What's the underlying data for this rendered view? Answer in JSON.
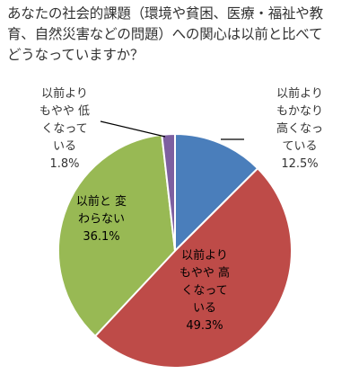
{
  "chart_data": {
    "type": "pie",
    "title_lines": [
      "あなたの社会的課題（環境や貧困、医療・福祉や教",
      "育、自然災害などの問題）への関心は以前と比べて",
      "どうなっていますか？"
    ],
    "start_angle_deg": 0,
    "direction": "clockwise",
    "slices": [
      {
        "label_lines": [
          "以前より",
          "もかなり",
          "高くなっ",
          "ている"
        ],
        "value": 12.5,
        "value_label": "12.5%",
        "color": "#4a7ebb",
        "label_color": "#ffffff",
        "label_position": "outside"
      },
      {
        "label_lines": [
          "以前より",
          "もやや 高",
          "くなって",
          "いる"
        ],
        "value": 49.3,
        "value_label": "49.3%",
        "color": "#be4b48",
        "label_color": "#ffffff",
        "label_position": "inside"
      },
      {
        "label_lines": [
          "以前と 変",
          "わらない"
        ],
        "value": 36.1,
        "value_label": "36.1%",
        "color": "#98b954",
        "label_color": "#ffffff",
        "label_position": "inside"
      },
      {
        "label_lines": [
          "以前より",
          "もやや 低",
          "くなって",
          "いる"
        ],
        "value": 1.8,
        "value_label": "1.8%",
        "color": "#7d5fa0",
        "label_color": "#ffffff",
        "label_position": "outside"
      }
    ]
  }
}
